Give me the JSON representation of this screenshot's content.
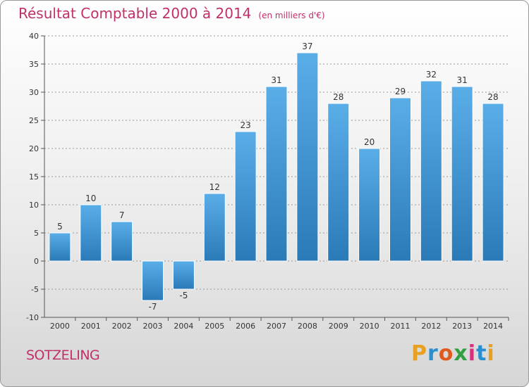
{
  "chart_data": {
    "type": "bar",
    "title": "Résultat Comptable 2000 à 2014",
    "unit": "(en milliers d'€)",
    "categories": [
      "2000",
      "2001",
      "2002",
      "2003",
      "2004",
      "2005",
      "2006",
      "2007",
      "2008",
      "2009",
      "2010",
      "2011",
      "2012",
      "2013",
      "2014"
    ],
    "values": [
      5,
      10,
      7,
      -7,
      -5,
      12,
      23,
      31,
      37,
      28,
      20,
      29,
      32,
      31,
      28
    ],
    "ylim": [
      -10,
      40
    ],
    "yticks": [
      -10,
      -5,
      0,
      5,
      10,
      15,
      20,
      25,
      30,
      35,
      40
    ],
    "xlabel": "",
    "ylabel": "",
    "bar_color_top": "#5aaee8",
    "bar_color_bottom": "#2a7ab8"
  },
  "footer": {
    "commune": "SOTZELING",
    "logo_letters": [
      "P",
      "r",
      "o",
      "x",
      "i",
      "t",
      "i"
    ],
    "logo_colors": [
      "#e8a020",
      "#2a8fd0",
      "#e05a20",
      "#30a040",
      "#d83080",
      "#2a8fd0",
      "#e8a020"
    ]
  },
  "colors": {
    "title": "#c0306a",
    "axis": "#333333",
    "grid": "#999999"
  }
}
